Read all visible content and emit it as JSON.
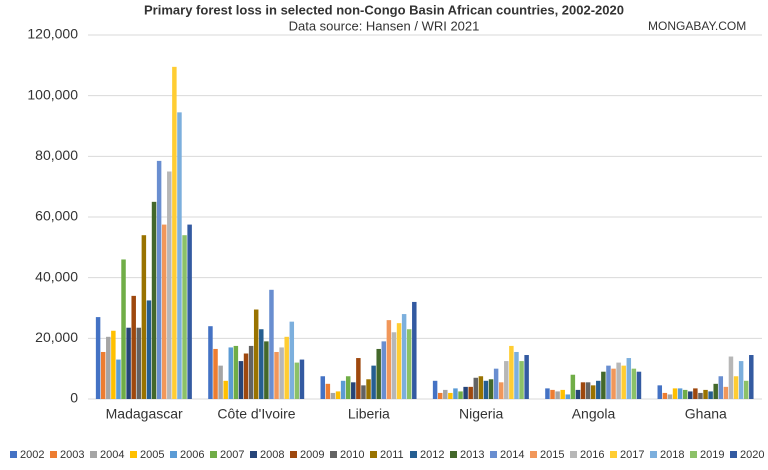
{
  "chart_data": {
    "type": "bar",
    "title": "Primary forest loss in selected non-Congo Basin African countries, 2002-2020",
    "subtitle": "Data source: Hansen / WRI 2021",
    "watermark": "MONGABAY.COM",
    "categories": [
      "Madagascar",
      "Côte d'Ivoire",
      "Liberia",
      "Nigeria",
      "Angola",
      "Ghana"
    ],
    "ylim": [
      0,
      120000
    ],
    "yticks": [
      0,
      {
        "value": 20000,
        "label": "20,000"
      },
      {
        "value": 40000,
        "label": "40,000"
      },
      {
        "value": 60000,
        "label": "60,000"
      },
      {
        "value": 80000,
        "label": "80,000"
      },
      {
        "value": 100000,
        "label": "100,000"
      },
      {
        "value": 120000,
        "label": "120,000"
      }
    ],
    "grid": true,
    "legend": "bottom",
    "series": [
      {
        "name": "2002",
        "color": "#4472c4",
        "values": [
          27000,
          24000,
          7500,
          6000,
          3500,
          4500
        ]
      },
      {
        "name": "2003",
        "color": "#ed7d31",
        "values": [
          15500,
          16500,
          5000,
          2000,
          3000,
          2000
        ]
      },
      {
        "name": "2004",
        "color": "#a5a5a5",
        "values": [
          20500,
          11000,
          2000,
          3000,
          2500,
          1500
        ]
      },
      {
        "name": "2005",
        "color": "#ffc000",
        "values": [
          22500,
          6000,
          2500,
          2000,
          3000,
          3500
        ]
      },
      {
        "name": "2006",
        "color": "#5b9bd5",
        "values": [
          13000,
          17000,
          6000,
          3500,
          1500,
          3500
        ]
      },
      {
        "name": "2007",
        "color": "#70ad47",
        "values": [
          46000,
          17500,
          7500,
          2500,
          8000,
          3000
        ]
      },
      {
        "name": "2008",
        "color": "#264478",
        "values": [
          23500,
          12500,
          5500,
          4000,
          3000,
          2500
        ]
      },
      {
        "name": "2009",
        "color": "#9e480e",
        "values": [
          34000,
          15000,
          13500,
          4000,
          5500,
          3500
        ]
      },
      {
        "name": "2010",
        "color": "#636363",
        "values": [
          23500,
          17500,
          4500,
          7000,
          5500,
          2000
        ]
      },
      {
        "name": "2011",
        "color": "#997300",
        "values": [
          54000,
          29500,
          6500,
          7500,
          4500,
          3000
        ]
      },
      {
        "name": "2012",
        "color": "#255e91",
        "values": [
          32500,
          23000,
          11000,
          6000,
          6000,
          2500
        ]
      },
      {
        "name": "2013",
        "color": "#43682b",
        "values": [
          65000,
          19000,
          16500,
          6500,
          9000,
          5000
        ]
      },
      {
        "name": "2014",
        "color": "#698ed0",
        "values": [
          78500,
          36000,
          19000,
          10000,
          11000,
          7500
        ]
      },
      {
        "name": "2015",
        "color": "#f1975a",
        "values": [
          57500,
          15500,
          26000,
          5500,
          10000,
          4000
        ]
      },
      {
        "name": "2016",
        "color": "#b7b7b7",
        "values": [
          75000,
          17000,
          22000,
          12500,
          12000,
          14000
        ]
      },
      {
        "name": "2017",
        "color": "#ffcd33",
        "values": [
          109500,
          20500,
          25000,
          17500,
          11000,
          7500
        ]
      },
      {
        "name": "2018",
        "color": "#7cafdd",
        "values": [
          94500,
          25500,
          28000,
          15500,
          13500,
          12500
        ]
      },
      {
        "name": "2019",
        "color": "#8cc168",
        "values": [
          54000,
          12000,
          23000,
          12500,
          10000,
          6000
        ]
      },
      {
        "name": "2020",
        "color": "#335aa1",
        "values": [
          57500,
          13000,
          32000,
          14500,
          9000,
          14500
        ]
      }
    ]
  }
}
